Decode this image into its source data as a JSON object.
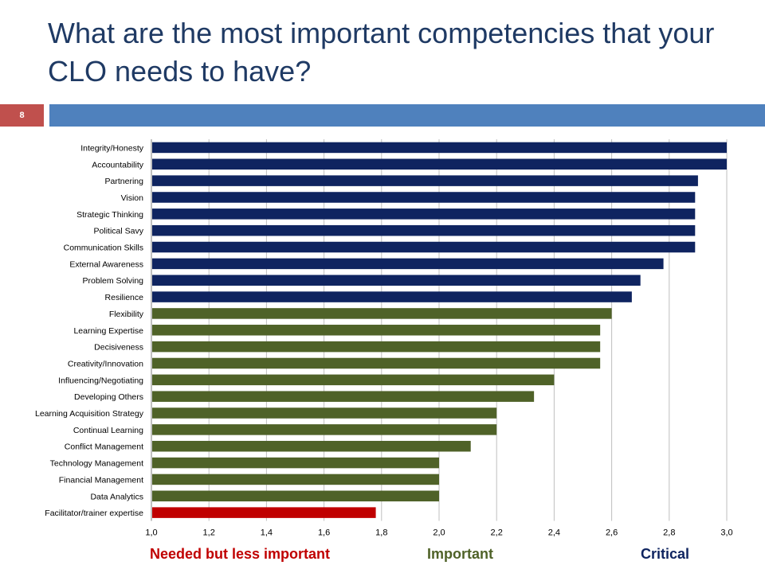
{
  "slide": {
    "title": "What are the most important competencies that your CLO needs to have?",
    "page_number": "8"
  },
  "colors": {
    "critical": "#0f2460",
    "important": "#4f6228",
    "less_important": "#c00000",
    "title": "#1f3a64",
    "band_red": "#c0504d",
    "band_blue": "#4f81bd"
  },
  "chart_data": {
    "type": "bar",
    "orientation": "horizontal",
    "title": "",
    "xlabel": "",
    "ylabel": "",
    "xlim": [
      1.0,
      3.0
    ],
    "xticks": [
      "1,0",
      "1,2",
      "1,4",
      "1,6",
      "1,8",
      "2,0",
      "2,2",
      "2,4",
      "2,6",
      "2,8",
      "3,0"
    ],
    "grid": "vertical",
    "categories": [
      "Integrity/Honesty",
      "Accountability",
      "Partnering",
      "Vision",
      "Strategic Thinking",
      "Political Savy",
      "Communication Skills",
      "External Awareness",
      "Problem Solving",
      "Resilience",
      "Flexibility",
      "Learning Expertise",
      "Decisiveness",
      "Creativity/Innovation",
      "Influencing/Negotiating",
      "Developing Others",
      "Learning Acquisition Strategy",
      "Continual Learning",
      "Conflict Management",
      "Technology Management",
      "Financial Management",
      "Data Analytics",
      "Facilitator/trainer expertise"
    ],
    "values": [
      3.0,
      3.0,
      2.9,
      2.89,
      2.89,
      2.89,
      2.89,
      2.78,
      2.7,
      2.67,
      2.6,
      2.56,
      2.56,
      2.56,
      2.4,
      2.33,
      2.2,
      2.2,
      2.11,
      2.0,
      2.0,
      2.0,
      1.78
    ],
    "groups": [
      "critical",
      "critical",
      "critical",
      "critical",
      "critical",
      "critical",
      "critical",
      "critical",
      "critical",
      "critical",
      "important",
      "important",
      "important",
      "important",
      "important",
      "important",
      "important",
      "important",
      "important",
      "important",
      "important",
      "important",
      "less_important"
    ],
    "legend": [
      {
        "label": "Needed but less important",
        "group": "less_important"
      },
      {
        "label": "Important",
        "group": "important"
      },
      {
        "label": "Critical",
        "group": "critical"
      }
    ],
    "legend_placement": "bottom"
  }
}
